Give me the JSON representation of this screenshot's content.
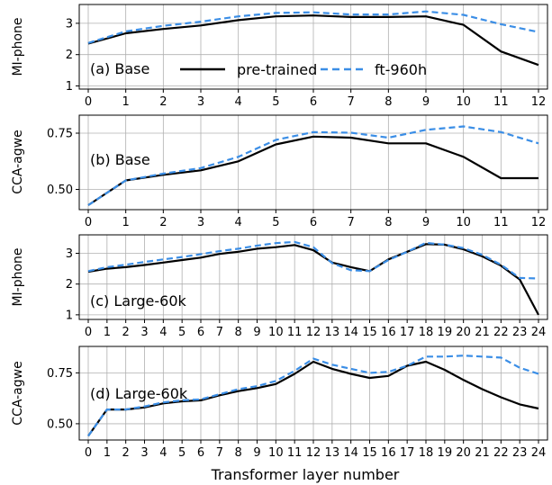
{
  "chart_data": [
    {
      "type": "line",
      "panel_label": "(a) Base",
      "ylabel": "MI-phone",
      "x": [
        0,
        1,
        2,
        3,
        4,
        5,
        6,
        7,
        8,
        9,
        10,
        11,
        12
      ],
      "xticks": [
        "0",
        "1",
        "2",
        "3",
        "4",
        "5",
        "6",
        "7",
        "8",
        "9",
        "10",
        "11",
        "12"
      ],
      "ylim": [
        0.9,
        3.6
      ],
      "yticks": [
        1,
        2,
        3
      ],
      "yticklabels": [
        "1",
        "2",
        "3"
      ],
      "grid": true,
      "legend": "inside-bottom",
      "series": [
        {
          "name": "pre-trained",
          "color": "#000000",
          "dash": "solid",
          "values": [
            2.35,
            2.68,
            2.82,
            2.93,
            3.1,
            3.22,
            3.25,
            3.2,
            3.2,
            3.22,
            2.95,
            2.1,
            1.67
          ]
        },
        {
          "name": "ft-960h",
          "color": "#3b8ee6",
          "dash": "dashed",
          "values": [
            2.37,
            2.74,
            2.92,
            3.05,
            3.22,
            3.33,
            3.35,
            3.28,
            3.28,
            3.38,
            3.27,
            2.97,
            2.72
          ]
        }
      ]
    },
    {
      "type": "line",
      "panel_label": "(b) Base",
      "ylabel": "CCA-agwe",
      "x": [
        0,
        1,
        2,
        3,
        4,
        5,
        6,
        7,
        8,
        9,
        10,
        11,
        12
      ],
      "xticks": [
        "0",
        "1",
        "2",
        "3",
        "4",
        "5",
        "6",
        "7",
        "8",
        "9",
        "10",
        "11",
        "12"
      ],
      "ylim": [
        0.41,
        0.83
      ],
      "yticks": [
        0.5,
        0.75
      ],
      "yticklabels": [
        "0.50",
        "0.75"
      ],
      "grid": true,
      "series": [
        {
          "name": "pre-trained",
          "color": "#000000",
          "dash": "solid",
          "values": [
            0.43,
            0.54,
            0.565,
            0.585,
            0.625,
            0.7,
            0.735,
            0.73,
            0.705,
            0.705,
            0.645,
            0.55,
            0.55
          ]
        },
        {
          "name": "ft-960h",
          "color": "#3b8ee6",
          "dash": "dashed",
          "values": [
            0.43,
            0.54,
            0.57,
            0.595,
            0.645,
            0.72,
            0.755,
            0.752,
            0.73,
            0.765,
            0.78,
            0.755,
            0.705
          ]
        }
      ]
    },
    {
      "type": "line",
      "panel_label": "(c) Large-60k",
      "ylabel": "MI-phone",
      "x": [
        0,
        1,
        2,
        3,
        4,
        5,
        6,
        7,
        8,
        9,
        10,
        11,
        12,
        13,
        14,
        15,
        16,
        17,
        18,
        19,
        20,
        21,
        22,
        23,
        24
      ],
      "xticks": [
        "0",
        "1",
        "2",
        "3",
        "4",
        "5",
        "6",
        "7",
        "8",
        "9",
        "10",
        "11",
        "12",
        "13",
        "14",
        "15",
        "16",
        "17",
        "18",
        "19",
        "20",
        "21",
        "22",
        "23",
        "24"
      ],
      "ylim": [
        0.85,
        3.6
      ],
      "yticks": [
        1,
        2,
        3
      ],
      "yticklabels": [
        "1",
        "2",
        "3"
      ],
      "grid": true,
      "series": [
        {
          "name": "pre-trained",
          "color": "#000000",
          "dash": "solid",
          "values": [
            2.4,
            2.5,
            2.55,
            2.62,
            2.7,
            2.78,
            2.86,
            2.98,
            3.05,
            3.15,
            3.2,
            3.27,
            3.1,
            2.7,
            2.55,
            2.42,
            2.8,
            3.05,
            3.3,
            3.28,
            3.13,
            2.9,
            2.6,
            2.15,
            1.0
          ]
        },
        {
          "name": "ft-960h",
          "color": "#3b8ee6",
          "dash": "dashed",
          "values": [
            2.42,
            2.55,
            2.63,
            2.72,
            2.8,
            2.88,
            2.97,
            3.07,
            3.15,
            3.25,
            3.33,
            3.37,
            3.2,
            2.68,
            2.45,
            2.42,
            2.78,
            3.05,
            3.34,
            3.28,
            3.17,
            2.95,
            2.63,
            2.2,
            2.18
          ]
        }
      ]
    },
    {
      "type": "line",
      "panel_label": "(d) Large-60k",
      "ylabel": "CCA-agwe",
      "x": [
        0,
        1,
        2,
        3,
        4,
        5,
        6,
        7,
        8,
        9,
        10,
        11,
        12,
        13,
        14,
        15,
        16,
        17,
        18,
        19,
        20,
        21,
        22,
        23,
        24
      ],
      "xticks": [
        "0",
        "1",
        "2",
        "3",
        "4",
        "5",
        "6",
        "7",
        "8",
        "9",
        "10",
        "11",
        "12",
        "13",
        "14",
        "15",
        "16",
        "17",
        "18",
        "19",
        "20",
        "21",
        "22",
        "23",
        "24"
      ],
      "ylim": [
        0.42,
        0.88
      ],
      "yticks": [
        0.5,
        0.75
      ],
      "yticklabels": [
        "0.50",
        "0.75"
      ],
      "grid": true,
      "series": [
        {
          "name": "pre-trained",
          "color": "#000000",
          "dash": "solid",
          "values": [
            0.44,
            0.57,
            0.57,
            0.58,
            0.6,
            0.61,
            0.615,
            0.64,
            0.66,
            0.675,
            0.695,
            0.745,
            0.805,
            0.77,
            0.745,
            0.725,
            0.735,
            0.785,
            0.805,
            0.765,
            0.715,
            0.67,
            0.63,
            0.595,
            0.575
          ]
        },
        {
          "name": "ft-960h",
          "color": "#3b8ee6",
          "dash": "dashed",
          "values": [
            0.44,
            0.57,
            0.57,
            0.585,
            0.605,
            0.615,
            0.62,
            0.645,
            0.67,
            0.685,
            0.71,
            0.76,
            0.82,
            0.79,
            0.77,
            0.75,
            0.755,
            0.785,
            0.83,
            0.83,
            0.835,
            0.83,
            0.825,
            0.775,
            0.745
          ]
        }
      ]
    }
  ],
  "xlabel": "Transformer layer number",
  "legend": [
    {
      "label": "pre-trained",
      "color": "#000000",
      "dash": "solid"
    },
    {
      "label": "ft-960h",
      "color": "#3b8ee6",
      "dash": "dashed"
    }
  ]
}
